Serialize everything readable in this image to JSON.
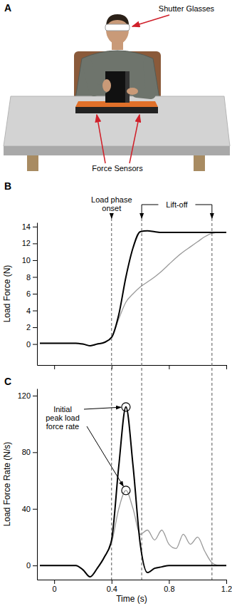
{
  "illustration": {
    "panel": "A",
    "labels": [
      "Shutter Glasses",
      "Force Sensors"
    ]
  },
  "chart_data": [
    {
      "type": "line",
      "panel": "B",
      "y_label": "Load Force (N)",
      "x": [
        -0.1,
        -0.05,
        0,
        0.05,
        0.1,
        0.15,
        0.2,
        0.25,
        0.3,
        0.35,
        0.4,
        0.45,
        0.5,
        0.55,
        0.6,
        0.65,
        0.7,
        0.75,
        0.8,
        0.85,
        0.9,
        0.95,
        1.0,
        1.05,
        1.1,
        1.15,
        1.2
      ],
      "series": [
        {
          "color": "#000000",
          "values": [
            0.1,
            0.1,
            0.1,
            0.1,
            0.1,
            0.1,
            0,
            -0.2,
            0,
            0.2,
            0.8,
            3.5,
            8,
            11.5,
            13.4,
            13.5,
            13.4,
            13.3,
            13.3,
            13.3,
            13.3,
            13.3,
            13.3,
            13.3,
            13.3,
            13.3,
            13.3
          ]
        },
        {
          "color": "#999999",
          "values": [
            0.1,
            0.1,
            0.1,
            0.1,
            0.1,
            0.1,
            0,
            -0.2,
            0,
            0.2,
            0.8,
            3,
            5,
            6,
            6.8,
            7.4,
            8,
            8.7,
            9.5,
            10.3,
            11,
            11.6,
            12.2,
            12.8,
            13.2,
            13.3,
            13.3
          ]
        }
      ],
      "xlim": [
        -0.12,
        1.2
      ],
      "xticks": [
        0,
        0.4,
        0.8,
        1.2
      ],
      "ylim": [
        -2.5,
        14.5
      ],
      "yticks": [
        0,
        2,
        4,
        6,
        8,
        10,
        12,
        14
      ],
      "tick_labels": "y",
      "annotations": [
        {
          "text": [
            "Load phase",
            "onset"
          ],
          "x": 0.4
        },
        {
          "text": [
            "Lift-off"
          ],
          "x": [
            0.61,
            1.1
          ]
        }
      ]
    },
    {
      "type": "line",
      "panel": "C",
      "x_label": "Time (s)",
      "y_label": "Load Force Rate (N/s)",
      "x": [
        -0.1,
        -0.05,
        0,
        0.05,
        0.1,
        0.15,
        0.2,
        0.25,
        0.3,
        0.35,
        0.4,
        0.45,
        0.5,
        0.55,
        0.6,
        0.65,
        0.7,
        0.75,
        0.8,
        0.85,
        0.9,
        0.95,
        1.0,
        1.05,
        1.1,
        1.15,
        1.2
      ],
      "series": [
        {
          "color": "#000000",
          "values": [
            0,
            0,
            0,
            0,
            0,
            0,
            -3,
            -8,
            -2,
            6,
            18,
            70,
            112,
            70,
            15,
            -5,
            -2,
            -1,
            0,
            0,
            0,
            0,
            0,
            0,
            0,
            0,
            0
          ]
        },
        {
          "color": "#999999",
          "values": [
            0,
            0,
            0,
            0,
            0,
            0,
            -3,
            -8,
            -2,
            6,
            16,
            40,
            53,
            40,
            22,
            25,
            18,
            25,
            15,
            12,
            22,
            15,
            20,
            10,
            2,
            0,
            0
          ]
        }
      ],
      "xlim": [
        -0.12,
        1.2
      ],
      "xticks": [
        0,
        0.4,
        0.8,
        1.2
      ],
      "ylim": [
        -10,
        125
      ],
      "yticks": [
        0,
        40,
        80,
        120
      ],
      "annotations": [
        {
          "text": [
            "Initial",
            "peak load",
            "force rate"
          ],
          "points": [
            {
              "x": 0.5,
              "y": 112
            },
            {
              "x": 0.5,
              "y": 53
            }
          ]
        }
      ]
    }
  ]
}
